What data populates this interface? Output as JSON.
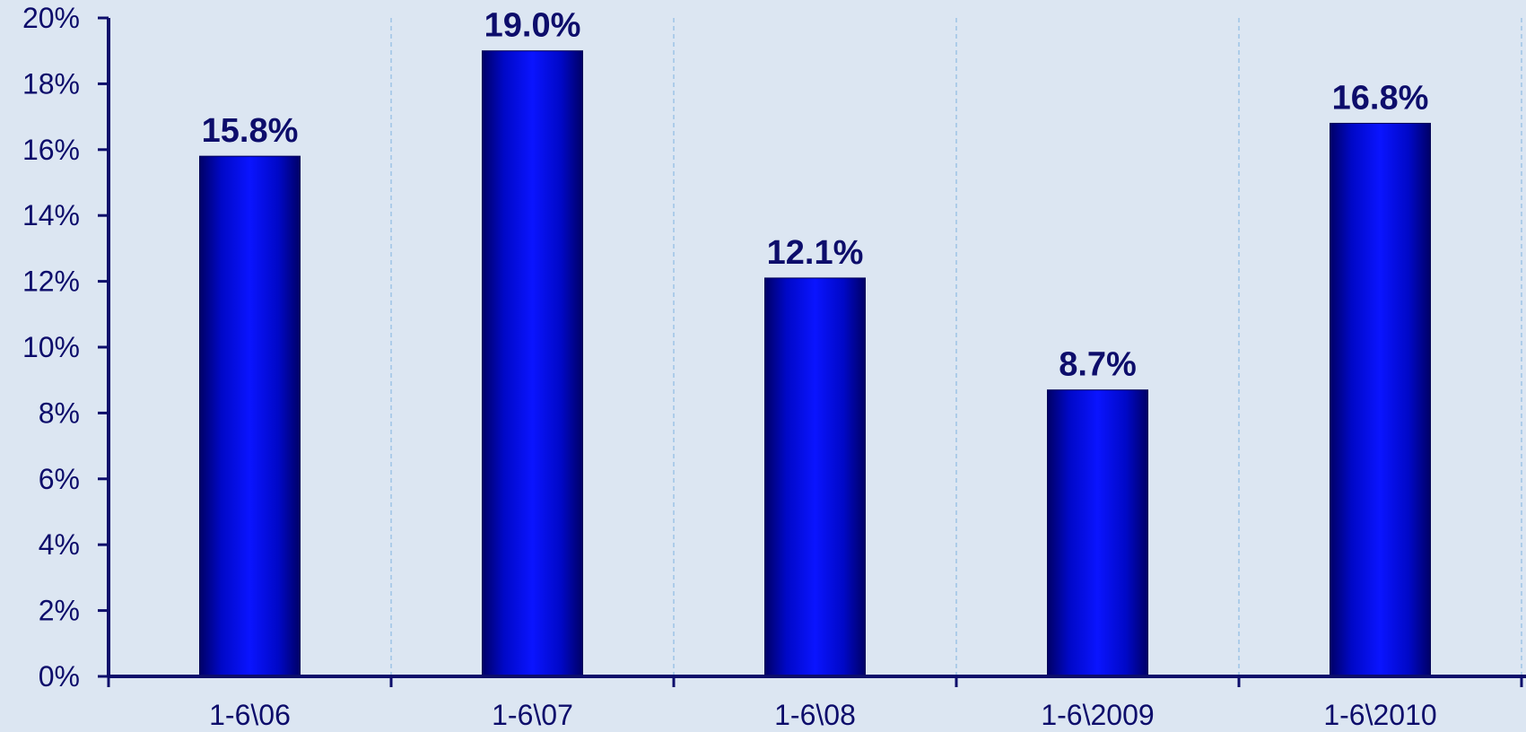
{
  "chart_data": {
    "type": "bar",
    "categories": [
      "1-6\\06",
      "1-6\\07",
      "1-6\\08",
      "1-6\\2009",
      "1-6\\2010"
    ],
    "values": [
      15.8,
      19.0,
      12.1,
      8.7,
      16.8
    ],
    "data_labels": [
      "15.8%",
      "19.0%",
      "12.1%",
      "8.7%",
      "16.8%"
    ],
    "title": "",
    "xlabel": "",
    "ylabel": "",
    "ylim": [
      0,
      20
    ],
    "y_ticks": [
      0,
      2,
      4,
      6,
      8,
      10,
      12,
      14,
      16,
      18,
      20
    ],
    "y_tick_labels": [
      "0%",
      "2%",
      "4%",
      "6%",
      "8%",
      "10%",
      "12%",
      "14%",
      "16%",
      "18%",
      "20%"
    ],
    "grid": "vertical dashed between categories",
    "legend": "none",
    "colors": {
      "background": "#dce6f2",
      "bar_center": "#0a14ff",
      "bar_edge": "#000066",
      "axis": "#0d0d6b",
      "text": "#0d0d6b",
      "grid": "#9dc3e6"
    }
  }
}
